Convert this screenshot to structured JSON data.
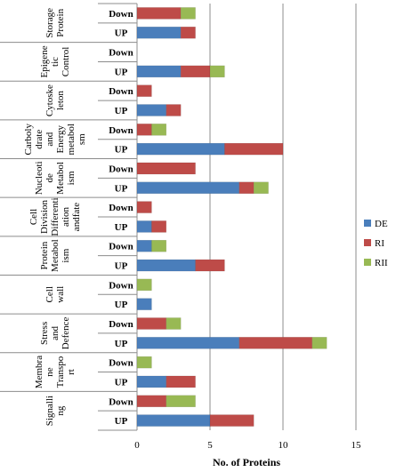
{
  "chart_data": {
    "type": "bar",
    "stacked": true,
    "orientation": "horizontal",
    "xlabel": "No. of Proteins",
    "xlim": [
      0,
      15
    ],
    "xticks": [
      0,
      5,
      10,
      15
    ],
    "grid": true,
    "legend_position": "right",
    "groups": [
      {
        "label": "Storage Protein",
        "lines": [
          "Storage",
          "Protein"
        ]
      },
      {
        "label": "Epigenetic Control",
        "lines": [
          "Epigene",
          "tic",
          "Control"
        ]
      },
      {
        "label": "Cytoskeleton",
        "lines": [
          "Cytoske",
          "leton"
        ]
      },
      {
        "label": "Carbohydrate and Energy metabolism",
        "lines": [
          "Carboly",
          "drate",
          "and",
          "Energy",
          "metabol",
          "sm"
        ]
      },
      {
        "label": "Nucleotide Metabolism",
        "lines": [
          "Nucleoti",
          "de",
          "Metabol",
          "ism"
        ]
      },
      {
        "label": "Cell Division Differentiation and fate",
        "lines": [
          "Cell",
          "Division",
          "Differenti",
          "ation",
          "andfate"
        ]
      },
      {
        "label": "Protein Metabolism",
        "lines": [
          "Protein",
          "Metabol",
          "ism"
        ]
      },
      {
        "label": "Cell wall",
        "lines": [
          "Cell",
          "wall"
        ]
      },
      {
        "label": "Stress and Defence",
        "lines": [
          "Stress",
          "and",
          "Defence"
        ]
      },
      {
        "label": "Membrane Transport",
        "lines": [
          "Membra",
          "ne",
          "Transpo",
          "rt"
        ]
      },
      {
        "label": "Signalling",
        "lines": [
          "Signalli",
          "ng"
        ]
      }
    ],
    "sublabels": [
      "Down",
      "UP"
    ],
    "series": [
      {
        "name": "DE",
        "color": "#4a7ebb",
        "values": [
          [
            0,
            3
          ],
          [
            0,
            3
          ],
          [
            0,
            2
          ],
          [
            0,
            6
          ],
          [
            0,
            7
          ],
          [
            0,
            1
          ],
          [
            1,
            4
          ],
          [
            0,
            1
          ],
          [
            0,
            7
          ],
          [
            0,
            2
          ],
          [
            0,
            5
          ]
        ]
      },
      {
        "name": "RI",
        "color": "#be4b48",
        "values": [
          [
            3,
            1
          ],
          [
            0,
            2
          ],
          [
            1,
            1
          ],
          [
            1,
            4
          ],
          [
            4,
            1
          ],
          [
            1,
            1
          ],
          [
            0,
            2
          ],
          [
            0,
            0
          ],
          [
            2,
            5
          ],
          [
            0,
            2
          ],
          [
            2,
            3
          ]
        ]
      },
      {
        "name": "RII",
        "color": "#98b954",
        "values": [
          [
            1,
            0
          ],
          [
            0,
            1
          ],
          [
            0,
            0
          ],
          [
            1,
            0
          ],
          [
            0,
            1
          ],
          [
            0,
            0
          ],
          [
            1,
            0
          ],
          [
            1,
            0
          ],
          [
            1,
            1
          ],
          [
            1,
            0
          ],
          [
            2,
            0
          ]
        ]
      }
    ]
  }
}
